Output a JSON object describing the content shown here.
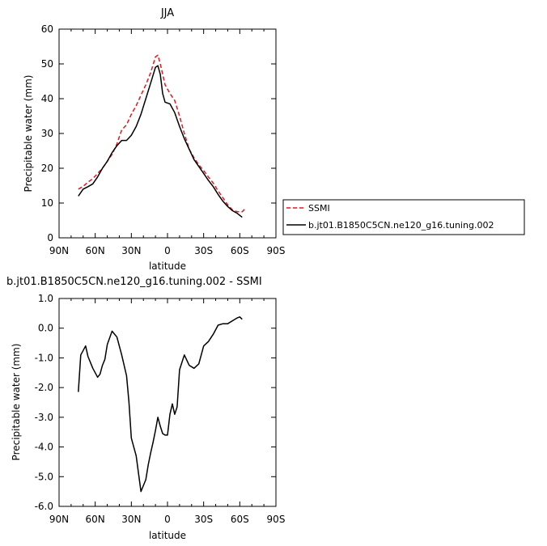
{
  "chart_data": [
    {
      "type": "line",
      "title": "JJA",
      "xlabel": "latitude",
      "ylabel": "Precipitable water (mm)",
      "xlim": [
        90,
        -90
      ],
      "ylim": [
        0,
        60
      ],
      "x_ticks": [
        90,
        60,
        30,
        0,
        -30,
        -60,
        -90
      ],
      "x_tick_labels": [
        "90N",
        "60N",
        "30N",
        "0",
        "30S",
        "60S",
        "90S"
      ],
      "y_ticks": [
        0,
        10,
        20,
        30,
        40,
        50,
        60
      ],
      "y_tick_labels": [
        "0",
        "10",
        "20",
        "30",
        "40",
        "50",
        "60"
      ],
      "legend_position": "right",
      "series": [
        {
          "name": "SSMI",
          "color": "#e8141e",
          "dash": "dashed",
          "x": [
            74,
            70,
            66,
            62,
            58,
            54,
            50,
            46,
            42,
            38,
            34,
            30,
            26,
            22,
            18,
            14,
            10,
            8,
            6,
            2,
            -2,
            -6,
            -10,
            -14,
            -18,
            -22,
            -26,
            -30,
            -34,
            -38,
            -42,
            -46,
            -50,
            -54,
            -58,
            -62,
            -64
          ],
          "y": [
            14,
            14.8,
            16,
            17,
            18.5,
            20,
            22,
            24,
            27,
            31,
            32.5,
            35.5,
            38,
            41,
            44,
            47.5,
            52,
            52.5,
            50,
            44,
            41.5,
            39.5,
            35,
            30,
            25.5,
            23,
            21,
            19.3,
            17.5,
            15.7,
            13.5,
            11.5,
            9.5,
            8,
            7.5,
            7.5,
            8.2
          ]
        },
        {
          "name": "b.jt01.B1850C5CN.ne120_g16.tuning.002",
          "color": "#000000",
          "dash": "solid",
          "x": [
            74,
            72,
            70,
            66,
            62,
            58,
            54,
            50,
            46,
            42,
            38,
            36,
            34,
            30,
            26,
            22,
            18,
            14,
            10,
            8,
            6,
            4,
            2,
            -2,
            -6,
            -10,
            -14,
            -18,
            -22,
            -26,
            -30,
            -34,
            -38,
            -42,
            -46,
            -50,
            -54,
            -58,
            -62
          ],
          "y": [
            12,
            13,
            14,
            14.7,
            15.5,
            17.5,
            20,
            22,
            24.5,
            26.5,
            28,
            28,
            28,
            29.5,
            32,
            35.5,
            40,
            44.5,
            49,
            49.5,
            47,
            41.5,
            39,
            38.5,
            36,
            32,
            28.5,
            25.5,
            22.5,
            20.5,
            18.5,
            16.5,
            14.7,
            12.5,
            10.5,
            9,
            7.8,
            7,
            5.9
          ]
        }
      ]
    },
    {
      "type": "line",
      "title": "b.jt01.B1850C5CN.ne120_g16.tuning.002 - SSMI",
      "xlabel": "latitude",
      "ylabel": "Precipitable water (mm)",
      "xlim": [
        90,
        -90
      ],
      "ylim": [
        -6,
        1
      ],
      "x_ticks": [
        90,
        60,
        30,
        0,
        -30,
        -60,
        -90
      ],
      "x_tick_labels": [
        "90N",
        "60N",
        "30N",
        "0",
        "30S",
        "60S",
        "90S"
      ],
      "y_ticks": [
        1,
        0,
        -1,
        -2,
        -3,
        -4,
        -5,
        -6
      ],
      "y_tick_labels": [
        "1.0",
        "0.0",
        "-1.0",
        "-2.0",
        "-3.0",
        "-4.0",
        "-5.0",
        "-6.0"
      ],
      "series": [
        {
          "color": "#000000",
          "dash": "solid",
          "x": [
            74,
            72,
            70,
            68,
            66,
            62,
            58,
            56,
            54,
            52,
            50,
            46,
            42,
            38,
            34,
            32,
            30,
            26,
            22,
            18,
            16,
            14,
            12,
            10,
            8,
            6,
            4,
            2,
            0,
            -2,
            -4,
            -6,
            -8,
            -10,
            -14,
            -18,
            -22,
            -26,
            -30,
            -34,
            -38,
            -42,
            -46,
            -50,
            -54,
            -58,
            -60,
            -62
          ],
          "y": [
            -2.15,
            -0.9,
            -0.75,
            -0.6,
            -0.95,
            -1.35,
            -1.65,
            -1.55,
            -1.25,
            -1.05,
            -0.55,
            -0.1,
            -0.3,
            -0.9,
            -1.6,
            -2.5,
            -3.7,
            -4.3,
            -5.5,
            -5.1,
            -4.6,
            -4.2,
            -3.85,
            -3.45,
            -3.0,
            -3.3,
            -3.55,
            -3.6,
            -3.6,
            -2.9,
            -2.55,
            -2.9,
            -2.65,
            -1.4,
            -0.9,
            -1.25,
            -1.35,
            -1.2,
            -0.6,
            -0.45,
            -0.2,
            0.1,
            0.15,
            0.15,
            0.25,
            0.35,
            0.38,
            0.3
          ]
        }
      ]
    }
  ]
}
